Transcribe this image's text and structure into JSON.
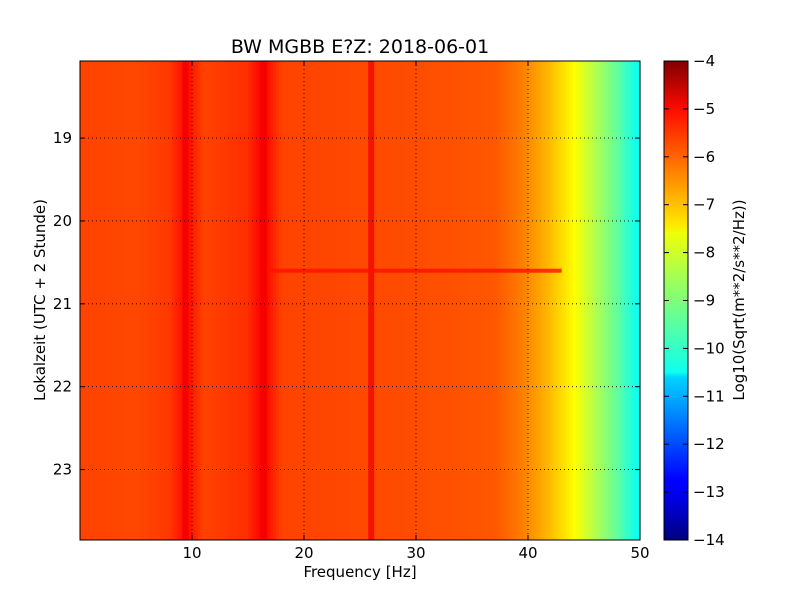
{
  "chart_data": {
    "type": "heatmap",
    "title": "BW MGBB E?Z: 2018-06-01",
    "xlabel": "Frequency [Hz]",
    "ylabel": "Lokalzeit (UTC + 2 Stunde)",
    "colorbar_label": "Log10(Sqrt(m**2/s**2/Hz))",
    "colormap": "jet",
    "xlim": [
      0,
      50
    ],
    "ylim": [
      18.07,
      23.85
    ],
    "y_inverted": true,
    "clim": [
      -14,
      -4
    ],
    "grid": true,
    "x_ticks": [
      "10",
      "20",
      "30",
      "40",
      "50"
    ],
    "y_ticks": [
      "19",
      "20",
      "21",
      "22",
      "23"
    ],
    "colorbar_ticks": [
      "-4",
      "-5",
      "-6",
      "-7",
      "-8",
      "-9",
      "-10",
      "-11",
      "-12",
      "-13",
      "-14"
    ],
    "base_level": -5.95,
    "spectral_profile": [
      {
        "f": 0,
        "v": -5.9
      },
      {
        "f": 5,
        "v": -5.95
      },
      {
        "f": 8,
        "v": -5.8
      },
      {
        "f": 9.5,
        "v": -5.3
      },
      {
        "f": 11,
        "v": -5.9
      },
      {
        "f": 15,
        "v": -5.7
      },
      {
        "f": 16.3,
        "v": -5.2
      },
      {
        "f": 18,
        "v": -5.9
      },
      {
        "f": 30,
        "v": -6.0
      },
      {
        "f": 37,
        "v": -6.1
      },
      {
        "f": 39,
        "v": -6.4
      },
      {
        "f": 40,
        "v": -6.6
      },
      {
        "f": 42,
        "v": -7.1
      },
      {
        "f": 44,
        "v": -7.7
      },
      {
        "f": 46,
        "v": -8.5
      },
      {
        "f": 48,
        "v": -9.3
      },
      {
        "f": 49,
        "v": -9.8
      },
      {
        "f": 50,
        "v": -10.2
      }
    ],
    "persistent_lines_hz": [
      9.4,
      16.4,
      26.0
    ],
    "broadband_event_hours": [
      20.6
    ]
  }
}
